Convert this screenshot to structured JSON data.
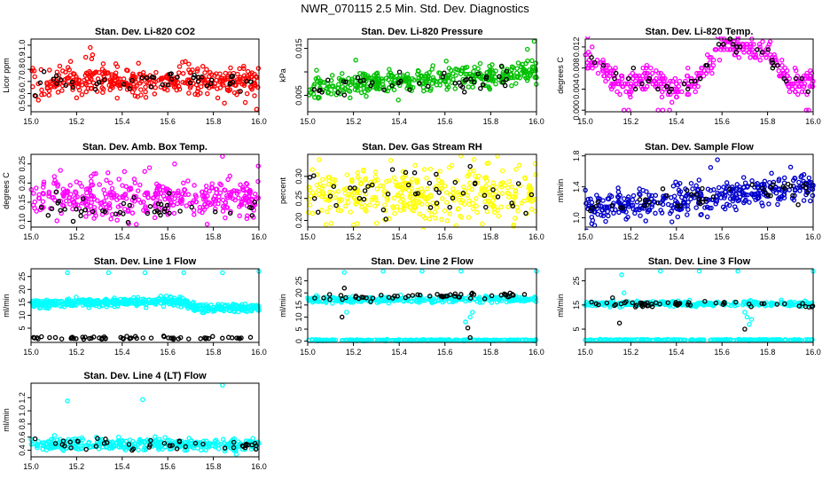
{
  "figure": {
    "title": "NWR_070115  2.5 Min. Std. Dev. Diagnostics"
  },
  "chart_data": [
    {
      "type": "scatter",
      "title": "Stan. Dev. Li-820 CO2",
      "ylabel": "Licor ppm",
      "xlim": [
        15.0,
        16.0
      ],
      "ylim": [
        0.45,
        1.05
      ],
      "xticks": [
        "15.0",
        "15.2",
        "15.4",
        "15.6",
        "15.8",
        "16.0"
      ],
      "yticks": [
        "0.5",
        "0.6",
        "0.7",
        "0.8",
        "0.9",
        "1.0"
      ],
      "series": [
        {
          "color": "#ff0000",
          "mean": 0.7,
          "sd": 0.06,
          "trend": 0,
          "spread": 0.05,
          "n": 380,
          "seed": 1,
          "outliers": [
            [
              15.26,
              0.98
            ],
            [
              15.27,
              0.92
            ],
            [
              15.24,
              0.9
            ],
            [
              15.99,
              0.47
            ]
          ]
        },
        {
          "color": "#000000",
          "mean": 0.7,
          "sd": 0.04,
          "trend": 0,
          "spread": 0.05,
          "n": 45,
          "seed": 2
        }
      ]
    },
    {
      "type": "scatter",
      "title": "Stan. Dev. Li-820 Pressure",
      "ylabel": "kPa",
      "xlim": [
        15.0,
        16.0
      ],
      "ylim": [
        0.0015,
        0.017
      ],
      "xticks": [
        "15.0",
        "15.2",
        "15.4",
        "15.6",
        "15.8",
        "16.0"
      ],
      "yticks": [
        "0.005",
        "",
        "0.015"
      ],
      "ytick_values": [
        0.005,
        0.01,
        0.015
      ],
      "series": [
        {
          "color": "#00c000",
          "mean": 0.0065,
          "sd": 0.0013,
          "trend": 0.0035,
          "spread": 0.05,
          "n": 380,
          "seed": 3,
          "outliers": [
            [
              15.99,
              0.0165
            ],
            [
              15.96,
              0.0148
            ],
            [
              15.21,
              0.0125
            ]
          ]
        },
        {
          "color": "#000000",
          "mean": 0.0065,
          "sd": 0.001,
          "trend": 0.0025,
          "spread": 0.05,
          "n": 45,
          "seed": 4
        }
      ]
    },
    {
      "type": "scatter",
      "title": "Stan. Dev. Li-820 Temp.",
      "ylabel": "degrees C",
      "xlim": [
        15.0,
        16.0
      ],
      "ylim": [
        -0.0003,
        0.0135
      ],
      "xticks": [
        "15.0",
        "15.2",
        "15.4",
        "15.6",
        "15.8",
        "16.0"
      ],
      "yticks": [
        "0.000",
        "0.004",
        "0.008",
        "0.012"
      ],
      "ytick_values": [
        0.0,
        0.004,
        0.008,
        0.012
      ],
      "series": [
        {
          "color": "#ff00ff",
          "levels": [
            [
              15.0,
              0.011
            ],
            [
              15.08,
              0.008
            ],
            [
              15.15,
              0.005
            ],
            [
              15.3,
              0.006
            ],
            [
              15.4,
              0.004
            ],
            [
              15.5,
              0.006
            ],
            [
              15.6,
              0.0125
            ],
            [
              15.8,
              0.011
            ],
            [
              15.9,
              0.005
            ],
            [
              16.0,
              0.005
            ]
          ],
          "sd": 0.0012,
          "quant": 0.0005,
          "n": 380,
          "seed": 5,
          "outliers": [
            [
              15.17,
              0.0
            ],
            [
              15.19,
              0.0
            ],
            [
              15.32,
              0.0
            ],
            [
              15.34,
              0.0
            ],
            [
              15.37,
              0.0
            ],
            [
              15.97,
              0.0
            ],
            [
              15.98,
              0.0
            ]
          ]
        },
        {
          "color": "#000000",
          "levels": [
            [
              15.0,
              0.011
            ],
            [
              15.08,
              0.008
            ],
            [
              15.15,
              0.005
            ],
            [
              15.3,
              0.006
            ],
            [
              15.4,
              0.004
            ],
            [
              15.5,
              0.006
            ],
            [
              15.6,
              0.0125
            ],
            [
              15.8,
              0.011
            ],
            [
              15.9,
              0.005
            ],
            [
              16.0,
              0.005
            ]
          ],
          "sd": 0.0008,
          "quant": 0.0005,
          "n": 45,
          "seed": 6
        }
      ]
    },
    {
      "type": "scatter",
      "title": "Stan. Dev. Amb. Box Temp.",
      "ylabel": "degrees C",
      "xlim": [
        15.0,
        16.0
      ],
      "ylim": [
        0.085,
        0.275
      ],
      "xticks": [
        "15.0",
        "15.2",
        "15.4",
        "15.6",
        "15.8",
        "16.0"
      ],
      "yticks": [
        "0.10",
        "0.15",
        "0.20",
        "0.25"
      ],
      "ytick_values": [
        0.1,
        0.15,
        0.2,
        0.25
      ],
      "series": [
        {
          "color": "#ff00ff",
          "mean": 0.16,
          "sd": 0.025,
          "trend": 0,
          "spread": 0.05,
          "n": 380,
          "seed": 7,
          "outliers": [
            [
              15.84,
              0.27
            ],
            [
              15.63,
              0.25
            ],
            [
              15.52,
              0.24
            ],
            [
              15.41,
              0.23
            ]
          ]
        },
        {
          "color": "#000000",
          "mean": 0.13,
          "sd": 0.018,
          "trend": 0,
          "spread": 0.05,
          "n": 45,
          "seed": 8
        }
      ]
    },
    {
      "type": "scatter",
      "title": "Stan. Dev. Gas Stream RH",
      "ylabel": "percent",
      "xlim": [
        15.0,
        16.0
      ],
      "ylim": [
        0.185,
        0.35
      ],
      "xticks": [
        "15.0",
        "15.2",
        "15.4",
        "15.6",
        "15.8",
        "16.0"
      ],
      "yticks": [
        "0.20",
        "0.25",
        "0.30"
      ],
      "ytick_values": [
        0.2,
        0.25,
        0.3
      ],
      "series": [
        {
          "color": "#ffff00",
          "mean": 0.26,
          "sd": 0.03,
          "trend": 0,
          "spread": 0.05,
          "n": 380,
          "seed": 9,
          "outliers": [
            [
              15.79,
              0.33
            ],
            [
              15.2,
              0.19
            ],
            [
              15.9,
              0.19
            ]
          ]
        },
        {
          "color": "#000000",
          "mean": 0.26,
          "sd": 0.025,
          "trend": 0,
          "spread": 0.05,
          "n": 45,
          "seed": 10
        }
      ]
    },
    {
      "type": "scatter",
      "title": "Stan. Dev. Sample Flow",
      "ylabel": "ml/min",
      "xlim": [
        15.0,
        16.0
      ],
      "ylim": [
        0.88,
        1.82
      ],
      "xticks": [
        "15.0",
        "15.2",
        "15.4",
        "15.6",
        "15.8",
        "16.0"
      ],
      "yticks": [
        "1.0",
        "1.4",
        "1.8"
      ],
      "ytick_values": [
        1.0,
        1.4,
        1.8
      ],
      "series": [
        {
          "color": "#0000cc",
          "mean": 1.12,
          "sd": 0.1,
          "trend": 0.26,
          "spread": 0.05,
          "n": 380,
          "seed": 11,
          "outliers": [
            [
              15.58,
              1.75
            ],
            [
              15.55,
              1.65
            ]
          ]
        },
        {
          "color": "#000000",
          "mean": 1.12,
          "sd": 0.07,
          "trend": 0.24,
          "spread": 0.05,
          "n": 45,
          "seed": 12
        }
      ]
    },
    {
      "type": "scatter",
      "title": "Stan. Dev. Line 1 Flow",
      "ylabel": "ml/min",
      "xlim": [
        15.0,
        16.0
      ],
      "ylim": [
        -0.5,
        28
      ],
      "xticks": [
        "15.0",
        "15.2",
        "15.4",
        "15.6",
        "15.8",
        "16.0"
      ],
      "yticks": [
        "5",
        "10",
        "15",
        "20",
        "25"
      ],
      "ytick_values": [
        5,
        10,
        15,
        20,
        25
      ],
      "series": [
        {
          "color": "#00ffff",
          "levels": [
            [
              15.0,
              14.5
            ],
            [
              15.65,
              15.5
            ],
            [
              15.72,
              13.0
            ],
            [
              16.0,
              13.0
            ]
          ],
          "sd": 0.8,
          "n": 500,
          "seed": 13,
          "outliers": [
            [
              15.16,
              26.5
            ],
            [
              15.34,
              26.5
            ],
            [
              15.5,
              26.5
            ],
            [
              15.67,
              26.5
            ],
            [
              15.84,
              26.5
            ],
            [
              16.0,
              27.0
            ]
          ]
        },
        {
          "color": "#000000",
          "mean": 1.2,
          "sd": 0.3,
          "trend": 0,
          "spread": 0.05,
          "n": 60,
          "seed": 14
        }
      ]
    },
    {
      "type": "scatter",
      "title": "Stan. Dev. Line 2 Flow",
      "ylabel": "ml/min",
      "xlim": [
        15.0,
        16.0
      ],
      "ylim": [
        -0.5,
        30
      ],
      "xticks": [
        "15.0",
        "15.2",
        "15.4",
        "15.6",
        "15.8",
        "16.0"
      ],
      "yticks": [
        "0",
        "5",
        "10",
        "15",
        "20",
        "25"
      ],
      "ytick_values": [
        0,
        5,
        10,
        15,
        20,
        25
      ],
      "series": [
        {
          "color": "#00ffff",
          "levels": [
            [
              15.0,
              17.2
            ],
            [
              16.0,
              17.5
            ]
          ],
          "sd": 0.6,
          "n": 300,
          "seed": 15,
          "outliers": [
            [
              15.16,
              28.5
            ],
            [
              15.33,
              29.0
            ],
            [
              15.5,
              29.0
            ],
            [
              15.67,
              29.0
            ],
            [
              16.0,
              29.0
            ],
            [
              15.69,
              8.0
            ],
            [
              15.71,
              10.0
            ],
            [
              15.72,
              12.0
            ],
            [
              15.17,
              12.0
            ]
          ]
        },
        {
          "color": "#00ffff",
          "mean": 0.4,
          "sd": 0.12,
          "trend": 0,
          "spread": 0.05,
          "n": 260,
          "seed": 16
        },
        {
          "color": "#000000",
          "mean": 18.0,
          "sd": 0.6,
          "trend": 1.5,
          "spread": 0.05,
          "n": 55,
          "seed": 17,
          "outliers": [
            [
              15.15,
              10.0
            ],
            [
              15.7,
              5.5
            ],
            [
              15.71,
              1.5
            ],
            [
              15.16,
              22.0
            ]
          ]
        }
      ]
    },
    {
      "type": "scatter",
      "title": "Stan. Dev. Line 3 Flow",
      "ylabel": "ml/min",
      "xlim": [
        15.0,
        16.0
      ],
      "ylim": [
        -0.5,
        30
      ],
      "xticks": [
        "15.0",
        "15.2",
        "15.4",
        "15.6",
        "15.8",
        "16.0"
      ],
      "yticks": [
        "5",
        "15",
        "25"
      ],
      "ytick_values": [
        5,
        15,
        25
      ],
      "series": [
        {
          "color": "#00ffff",
          "levels": [
            [
              15.0,
              15.5
            ],
            [
              16.0,
              15.5
            ]
          ],
          "sd": 0.5,
          "n": 300,
          "seed": 18,
          "outliers": [
            [
              15.16,
              27.5
            ],
            [
              15.17,
              20.0
            ],
            [
              15.33,
              29.0
            ],
            [
              15.5,
              29.0
            ],
            [
              15.67,
              29.0
            ],
            [
              16.0,
              29.0
            ],
            [
              15.7,
              12.0
            ],
            [
              15.71,
              10.0
            ],
            [
              15.72,
              7.0
            ],
            [
              15.73,
              9.0
            ]
          ]
        },
        {
          "color": "#00ffff",
          "mean": 0.5,
          "sd": 0.12,
          "trend": 0,
          "spread": 0.05,
          "n": 260,
          "seed": 19
        },
        {
          "color": "#000000",
          "mean": 15.5,
          "sd": 0.6,
          "trend": -0.5,
          "spread": 0.05,
          "n": 55,
          "seed": 20,
          "outliers": [
            [
              15.15,
              7.5
            ],
            [
              15.7,
              5.0
            ],
            [
              15.12,
              18.0
            ]
          ]
        }
      ]
    },
    {
      "type": "scatter",
      "title": "Stan. Dev. Line 4 (LT) Flow",
      "ylabel": "ml/min",
      "xlim": [
        15.0,
        16.0
      ],
      "ylim": [
        0.3,
        1.42
      ],
      "xticks": [
        "15.0",
        "15.2",
        "15.4",
        "15.6",
        "15.8",
        "16.0"
      ],
      "yticks": [
        "0.4",
        "0.6",
        "0.8",
        "1.0",
        "1.2"
      ],
      "ytick_values": [
        0.4,
        0.6,
        0.8,
        1.0,
        1.2
      ],
      "series": [
        {
          "color": "#00ffff",
          "mean": 0.49,
          "sd": 0.045,
          "trend": 0,
          "spread": 0.05,
          "n": 380,
          "seed": 21,
          "outliers": [
            [
              15.16,
              1.15
            ],
            [
              15.49,
              1.17
            ],
            [
              15.84,
              1.39
            ]
          ]
        },
        {
          "color": "#000000",
          "mean": 0.48,
          "sd": 0.04,
          "trend": 0,
          "spread": 0.05,
          "n": 45,
          "seed": 22
        }
      ]
    }
  ]
}
